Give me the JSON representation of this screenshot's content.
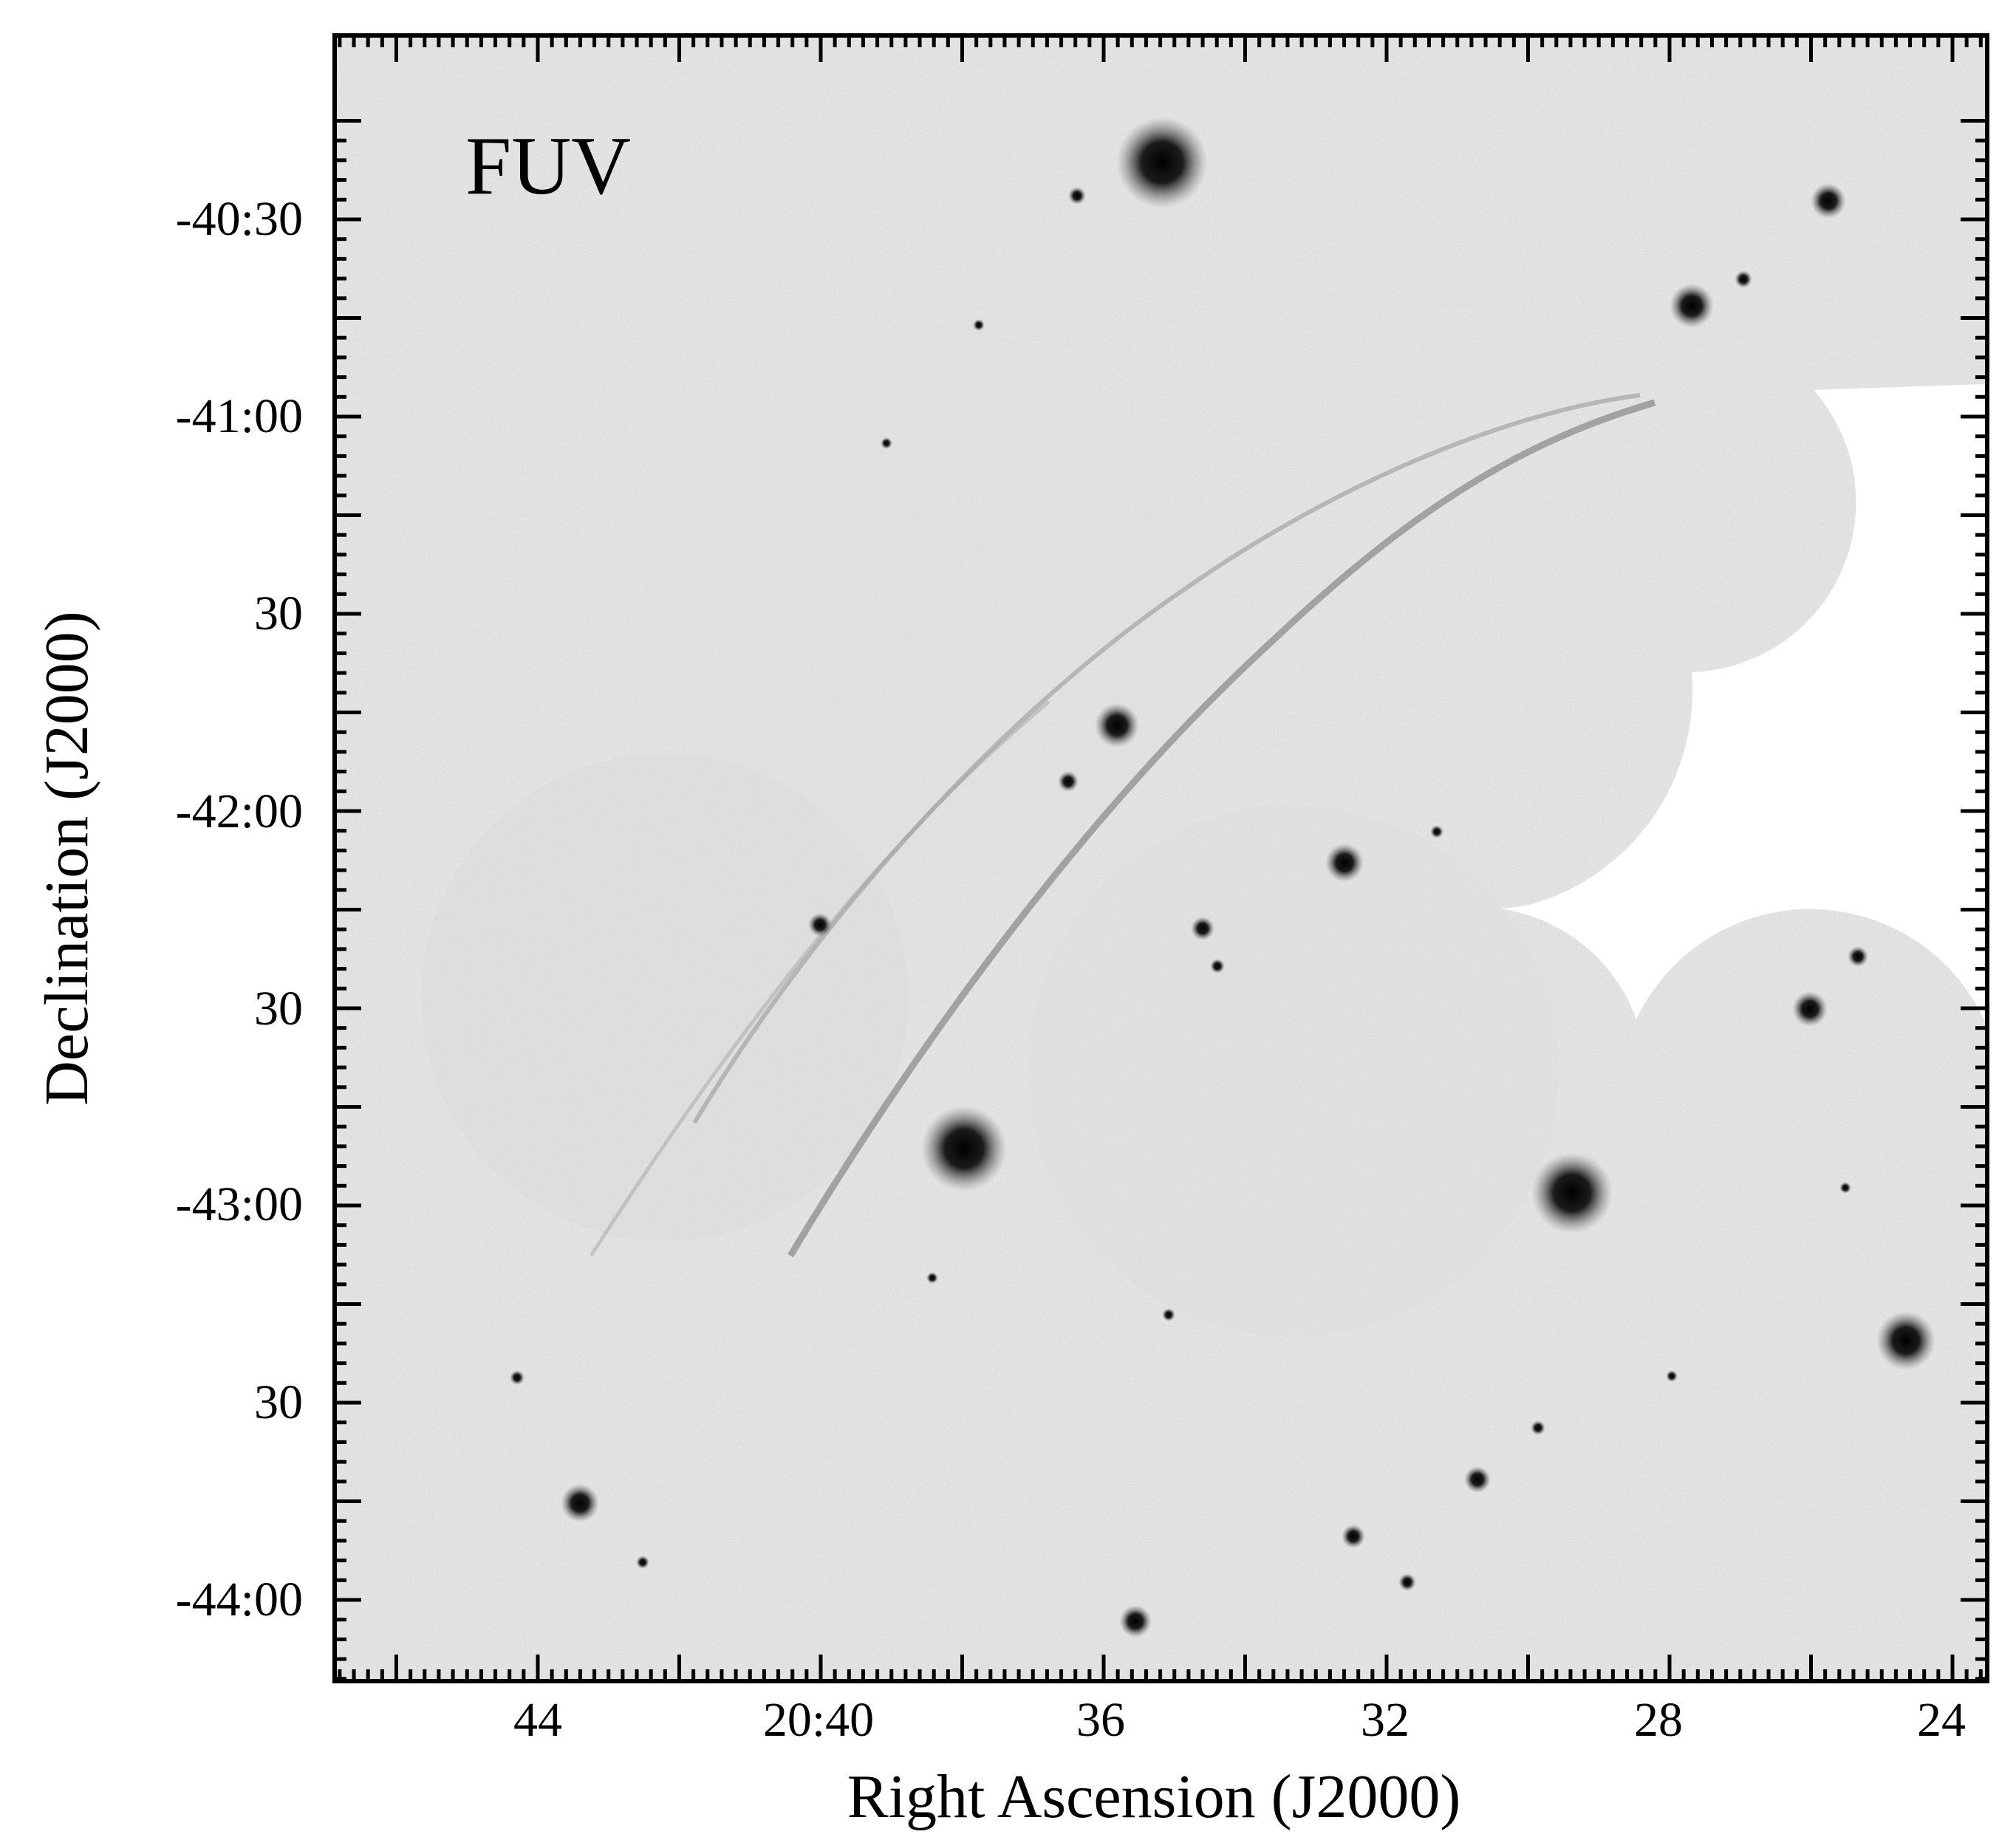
{
  "figure": {
    "band_label": "FUV",
    "x_axis_title": "Right Ascension (J2000)",
    "y_axis_title": "Declination (J2000)",
    "x_tick_labels": [
      "44",
      "20:40",
      "36",
      "32",
      "28",
      "24"
    ],
    "y_tick_labels": [
      "-40:30",
      "-41:00",
      "30",
      "-42:00",
      "30",
      "-43:00",
      "30",
      "-44:00"
    ],
    "colors": {
      "frame": "#000000",
      "sky": "#e9e9e9",
      "empty": "#ffffff",
      "filament": "#9a9a9a",
      "source": "#111111"
    }
  }
}
